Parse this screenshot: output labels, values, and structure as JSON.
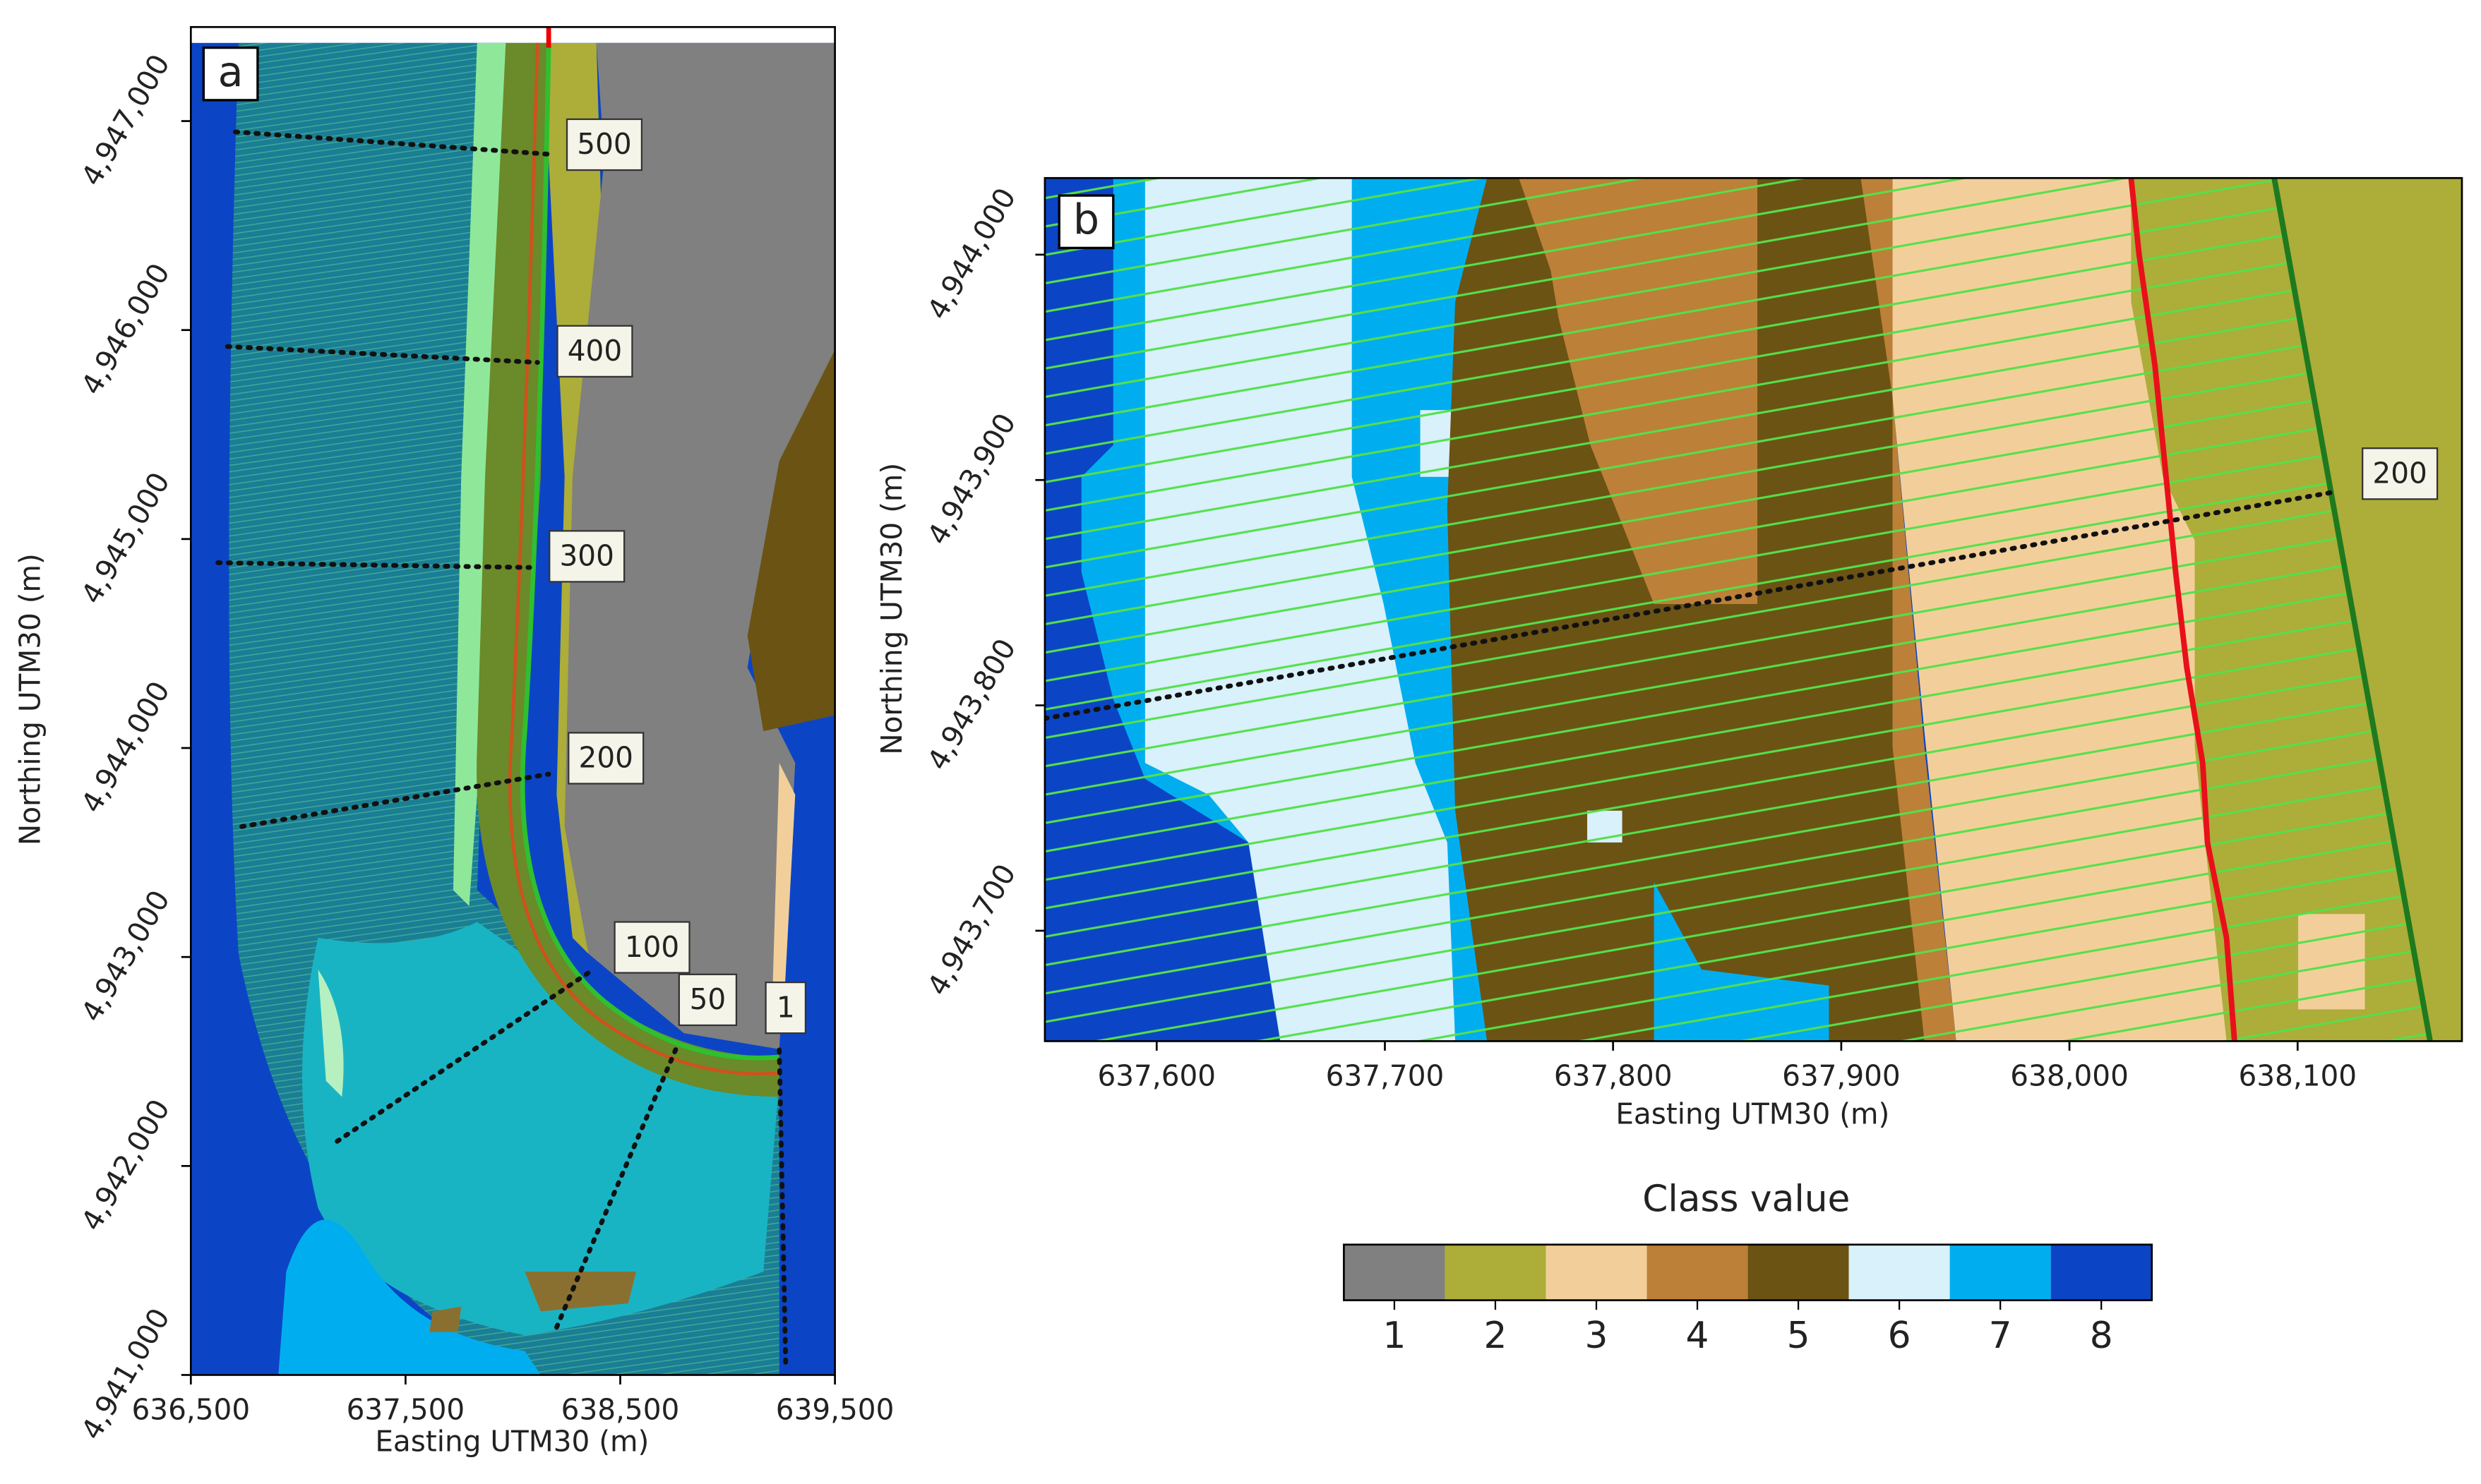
{
  "panel_a": {
    "label": "a",
    "xlabel": "Easting UTM30 (m)",
    "ylabel": "Northing UTM30 (m)",
    "xlim": [
      636500,
      639500
    ],
    "xticks": [
      {
        "value": 636500,
        "label": "636,500"
      },
      {
        "value": 637500,
        "label": "637,500"
      },
      {
        "value": 638500,
        "label": "638,500"
      },
      {
        "value": 639500,
        "label": "639,500"
      }
    ],
    "ylim": [
      4941000,
      4947450
    ],
    "yticks": [
      {
        "value": 4941000,
        "label": "4,941,000"
      },
      {
        "value": 4942000,
        "label": "4,942,000"
      },
      {
        "value": 4943000,
        "label": "4,943,000"
      },
      {
        "value": 4944000,
        "label": "4,944,000"
      },
      {
        "value": 4945000,
        "label": "4,945,000"
      },
      {
        "value": 4946000,
        "label": "4,946,000"
      },
      {
        "value": 4947000,
        "label": "4,947,000"
      }
    ],
    "transects": [
      500,
      400,
      300,
      200,
      100,
      50,
      1
    ]
  },
  "panel_b": {
    "label": "b",
    "xlabel": "Easting UTM30 (m)",
    "ylabel": "Northing UTM30 (m)",
    "xlim": [
      637551,
      638172
    ],
    "xticks": [
      {
        "value": 637600,
        "label": "637,600"
      },
      {
        "value": 637700,
        "label": "637,700"
      },
      {
        "value": 637800,
        "label": "637,800"
      },
      {
        "value": 637900,
        "label": "637,900"
      },
      {
        "value": 638000,
        "label": "638,000"
      },
      {
        "value": 638100,
        "label": "638,100"
      }
    ],
    "ylim": [
      4943651,
      4944034
    ],
    "yticks": [
      {
        "value": 4943700,
        "label": "4,943,700"
      },
      {
        "value": 4943800,
        "label": "4,943,800"
      },
      {
        "value": 4943900,
        "label": "4,943,900"
      },
      {
        "value": 4944000,
        "label": "4,944,000"
      }
    ],
    "transects": [
      200
    ]
  },
  "legend": {
    "title": "Class value",
    "classes": [
      1,
      2,
      3,
      4,
      5,
      6,
      7,
      8
    ],
    "colors": [
      "#808080",
      "#adad39",
      "#f2cf9a",
      "#bd8038",
      "#6b5314",
      "#d8f1fb",
      "#00aeef",
      "#0b45c6"
    ]
  }
}
